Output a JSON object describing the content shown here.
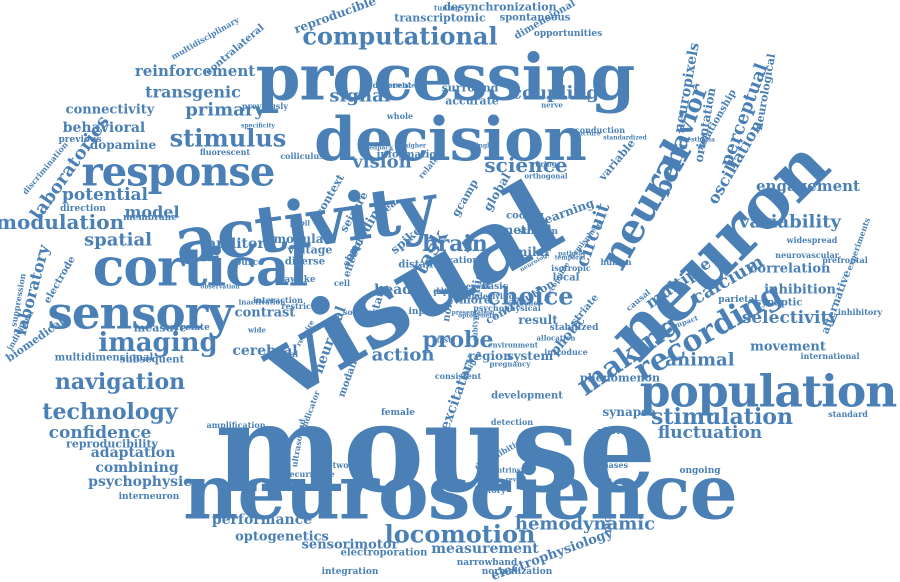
{
  "color": "#4a80b5",
  "words": [
    {
      "text": "mouse"
    },
    {
      "text": "neuroscience"
    },
    {
      "text": "visual"
    },
    {
      "text": "activity"
    },
    {
      "text": "neuron"
    },
    {
      "text": "processing"
    },
    {
      "text": "decision"
    },
    {
      "text": "cortical"
    },
    {
      "text": "population"
    },
    {
      "text": "sensory"
    },
    {
      "text": "response"
    },
    {
      "text": "neural"
    },
    {
      "text": "recording"
    },
    {
      "text": "making"
    },
    {
      "text": "locomotion"
    },
    {
      "text": "computational"
    },
    {
      "text": "navigation"
    },
    {
      "text": "technology"
    },
    {
      "text": "imaging"
    },
    {
      "text": "stimulation"
    },
    {
      "text": "hemodynamic"
    },
    {
      "text": "stimulus"
    },
    {
      "text": "brain"
    },
    {
      "text": "choice"
    },
    {
      "text": "probe"
    },
    {
      "text": "behavior"
    },
    {
      "text": "modulation"
    },
    {
      "text": "spatial"
    },
    {
      "text": "variability"
    },
    {
      "text": "signal"
    },
    {
      "text": "coupling"
    },
    {
      "text": "science"
    },
    {
      "text": "vision"
    },
    {
      "text": "fluctuation"
    },
    {
      "text": "confidence"
    },
    {
      "text": "reinforcement"
    },
    {
      "text": "transgenic"
    },
    {
      "text": "primary"
    },
    {
      "text": "potential"
    },
    {
      "text": "model"
    },
    {
      "text": "calcium"
    },
    {
      "text": "animal"
    },
    {
      "text": "selectivity"
    },
    {
      "text": "action"
    },
    {
      "text": "laboratories"
    },
    {
      "text": "laboratory"
    },
    {
      "text": "behavioral"
    },
    {
      "text": "connectivity"
    },
    {
      "text": "dopamine"
    },
    {
      "text": "auditory"
    },
    {
      "text": "contrast"
    },
    {
      "text": "cerebral"
    },
    {
      "text": "adaptation"
    },
    {
      "text": "combining"
    },
    {
      "text": "psychophysic"
    },
    {
      "text": "performance"
    },
    {
      "text": "optogenetics"
    },
    {
      "text": "sensorimotor"
    },
    {
      "text": "measurement"
    },
    {
      "text": "electrophysiology"
    },
    {
      "text": "perceptual"
    },
    {
      "text": "oscillation"
    },
    {
      "text": "circuit"
    },
    {
      "text": "multiple"
    },
    {
      "text": "engagement"
    },
    {
      "text": "correlation"
    },
    {
      "text": "inhibition"
    },
    {
      "text": "movement"
    },
    {
      "text": "synapse"
    },
    {
      "text": "region"
    },
    {
      "text": "system"
    },
    {
      "text": "result"
    },
    {
      "text": "method"
    },
    {
      "text": "learning"
    },
    {
      "text": "neuropixels"
    },
    {
      "text": "orientation"
    },
    {
      "text": "relationship"
    },
    {
      "text": "neurological"
    },
    {
      "text": "task"
    },
    {
      "text": "head"
    },
    {
      "text": "spike"
    },
    {
      "text": "effect"
    },
    {
      "text": "neuronal"
    },
    {
      "text": "excitatory"
    },
    {
      "text": "photic"
    },
    {
      "text": "reproducible"
    },
    {
      "text": "transcriptomic"
    },
    {
      "text": "spontaneous"
    },
    {
      "text": "desynchronization"
    },
    {
      "text": "dimensional"
    },
    {
      "text": "opportunities"
    },
    {
      "text": "contralateral"
    },
    {
      "text": "multidisciplinary"
    },
    {
      "text": "discrimination"
    },
    {
      "text": "electrode"
    },
    {
      "text": "biomedical"
    },
    {
      "text": "individual"
    },
    {
      "text": "suppression"
    },
    {
      "text": "reproducibility"
    },
    {
      "text": "interneuron"
    },
    {
      "text": "integration"
    },
    {
      "text": "electroporation"
    },
    {
      "text": "narrowband"
    },
    {
      "text": "normalization"
    },
    {
      "text": "multidimensional"
    },
    {
      "text": "subsequent"
    },
    {
      "text": "measure"
    },
    {
      "text": "correlate"
    },
    {
      "text": "direction"
    },
    {
      "text": "membrane"
    },
    {
      "text": "previous"
    },
    {
      "text": "fluorescent"
    },
    {
      "text": "colliculus"
    },
    {
      "text": "surround"
    },
    {
      "text": "accurate"
    },
    {
      "text": "different"
    },
    {
      "text": "correlated"
    },
    {
      "text": "information"
    },
    {
      "text": "related"
    },
    {
      "text": "modulate"
    },
    {
      "text": "voltage"
    },
    {
      "text": "source"
    },
    {
      "text": "diverse"
    },
    {
      "text": "awake"
    },
    {
      "text": "state"
    },
    {
      "text": "similar"
    },
    {
      "text": "local"
    },
    {
      "text": "striate"
    },
    {
      "text": "variable"
    },
    {
      "text": "parietal"
    },
    {
      "text": "synaptic"
    },
    {
      "text": "inhibitory"
    },
    {
      "text": "alternative"
    },
    {
      "text": "experiments"
    },
    {
      "text": "neurovascular"
    },
    {
      "text": "prefrontal"
    },
    {
      "text": "widespread"
    },
    {
      "text": "international"
    },
    {
      "text": "standard"
    },
    {
      "text": "phenomenon"
    },
    {
      "text": "development"
    },
    {
      "text": "female"
    },
    {
      "text": "photon"
    },
    {
      "text": "ongoing"
    },
    {
      "text": "biases"
    },
    {
      "text": "molecular"
    },
    {
      "text": "conduction"
    },
    {
      "text": "standardized"
    },
    {
      "text": "detection"
    },
    {
      "text": "pregnancy"
    },
    {
      "text": "stabilized"
    },
    {
      "text": "isotropic"
    },
    {
      "text": "human"
    },
    {
      "text": "causal"
    },
    {
      "text": "impact"
    },
    {
      "text": "network"
    },
    {
      "text": "recurrence"
    },
    {
      "text": "amplification"
    },
    {
      "text": "interaction"
    },
    {
      "text": "restriction"
    },
    {
      "text": "context"
    },
    {
      "text": "seizure"
    },
    {
      "text": "encoding"
    },
    {
      "text": "global"
    },
    {
      "text": "gcamp"
    },
    {
      "text": "coding"
    },
    {
      "text": "stratum"
    },
    {
      "text": "distance"
    },
    {
      "text": "fixation"
    },
    {
      "text": "simple"
    },
    {
      "text": "event"
    },
    {
      "text": "more"
    },
    {
      "text": "silicon"
    },
    {
      "text": "noise"
    },
    {
      "text": "input"
    },
    {
      "text": "area"
    },
    {
      "text": "cell"
    },
    {
      "text": "basic"
    },
    {
      "text": "whole"
    },
    {
      "text": "higher"
    },
    {
      "text": "single"
    },
    {
      "text": "structure"
    },
    {
      "text": "previously"
    },
    {
      "text": "specificity"
    },
    {
      "text": "observation"
    },
    {
      "text": "inactivation"
    },
    {
      "text": "modality"
    },
    {
      "text": "ultrasound"
    },
    {
      "text": "indicator"
    },
    {
      "text": "require"
    },
    {
      "text": "position"
    },
    {
      "text": "underlying"
    },
    {
      "text": "environment"
    },
    {
      "text": "disinhibition"
    },
    {
      "text": "history"
    },
    {
      "text": "intrinsic"
    },
    {
      "text": "reveal"
    },
    {
      "text": "pathway"
    },
    {
      "text": "neurology"
    },
    {
      "text": "perceptible"
    },
    {
      "text": "hemisphere"
    },
    {
      "text": "anesthesia"
    },
    {
      "text": "orthogonal"
    },
    {
      "text": "fast"
    },
    {
      "text": "optogenetic"
    },
    {
      "text": "presentation"
    },
    {
      "text": "evidence"
    },
    {
      "text": "control"
    },
    {
      "text": "pupil"
    },
    {
      "text": "retinal"
    },
    {
      "text": "wide"
    },
    {
      "text": "firing"
    },
    {
      "text": "nerve"
    },
    {
      "text": "tuning"
    },
    {
      "text": "feedback"
    },
    {
      "text": "temporal"
    },
    {
      "text": "introduce"
    },
    {
      "text": "allocation"
    },
    {
      "text": "contribution"
    },
    {
      "text": "psychophysical"
    },
    {
      "text": "consistent"
    },
    {
      "text": "sources"
    },
    {
      "text": "subtype"
    },
    {
      "text": "pattern"
    },
    {
      "text": "scale"
    },
    {
      "text": "bias"
    },
    {
      "text": "larger"
    },
    {
      "text": "active"
    },
    {
      "text": "express"
    }
  ]
}
